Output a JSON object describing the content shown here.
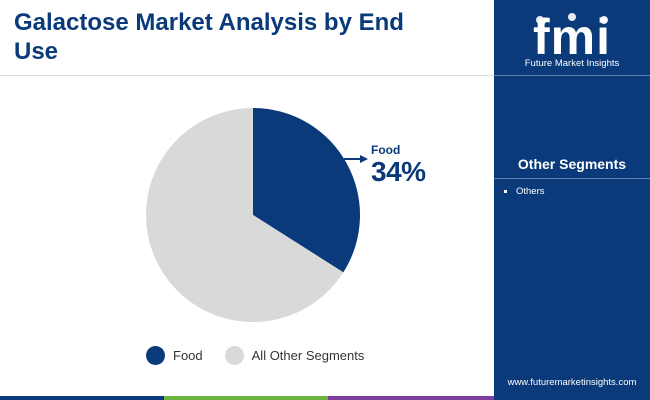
{
  "title": "Galactose Market Analysis by End Use",
  "chart_data": {
    "type": "pie",
    "slices": [
      {
        "label": "Food",
        "value": 34,
        "color": "#0a3a7a"
      },
      {
        "label": "All Other Segments",
        "value": 66,
        "color": "#d9d9d9"
      }
    ],
    "start_angle_deg": 0,
    "direction": "clockwise",
    "callout": {
      "label": "Food",
      "value": "34%"
    },
    "legend": [
      {
        "label": "Food",
        "color": "#0a3a7a"
      },
      {
        "label": "All Other Segments",
        "color": "#d9d9d9"
      }
    ],
    "legend_position": "bottom"
  },
  "sidebar": {
    "logo_text": "fmi",
    "brand": "Future Market Insights",
    "segments_heading": "Other Segments",
    "segments": [
      "Others"
    ],
    "url": "www.futuremarketinsights.com",
    "background": "#0a3a7a"
  },
  "footer_colors": [
    "#0a3a7a",
    "#6db33f",
    "#7b3fa0",
    "#0a3a7a"
  ]
}
